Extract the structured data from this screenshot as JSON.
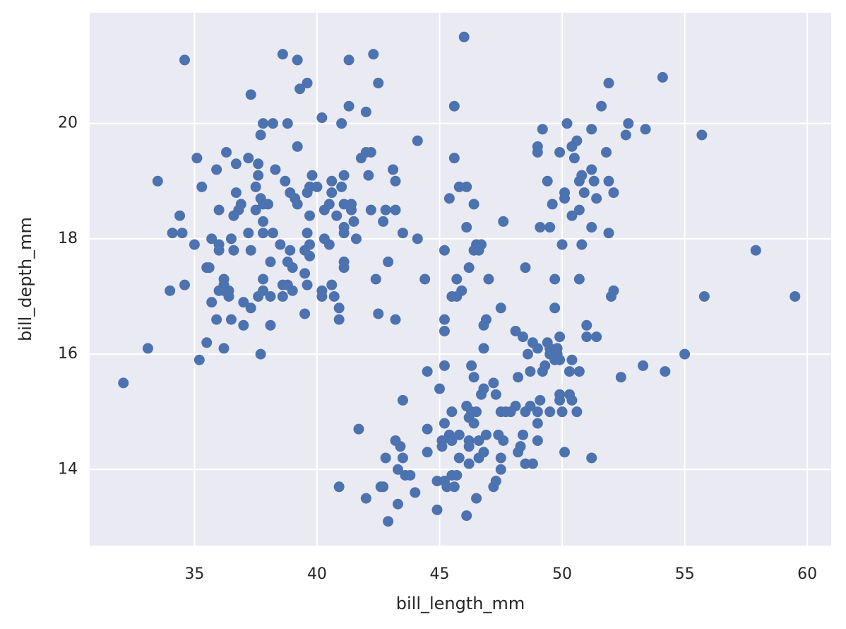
{
  "chart_data": {
    "type": "scatter",
    "x_label": "bill_length_mm",
    "y_label": "bill_depth_mm",
    "color": "#4c72b0",
    "grid": true,
    "xlim": [
      30.725,
      60.975
    ],
    "ylim": [
      12.68,
      21.92
    ],
    "xticks": [
      35,
      40,
      45,
      50,
      55,
      60
    ],
    "yticks": [
      14,
      16,
      18,
      20
    ],
    "x": [
      32.1,
      33.1,
      33.5,
      34.0,
      34.1,
      34.4,
      34.5,
      34.6,
      34.6,
      35.0,
      35.1,
      35.2,
      35.3,
      35.5,
      35.5,
      35.6,
      35.7,
      35.7,
      35.9,
      35.9,
      36.0,
      36.0,
      36.0,
      36.0,
      36.2,
      36.2,
      36.2,
      36.2,
      36.3,
      36.4,
      36.4,
      36.5,
      36.5,
      36.6,
      36.6,
      36.7,
      36.7,
      36.8,
      36.9,
      37.0,
      37.0,
      37.2,
      37.2,
      37.3,
      37.3,
      37.3,
      37.5,
      37.5,
      37.6,
      37.6,
      37.6,
      37.7,
      37.7,
      37.7,
      37.8,
      37.8,
      37.8,
      37.8,
      37.8,
      37.8,
      38.0,
      38.1,
      38.1,
      38.1,
      38.2,
      38.2,
      38.3,
      38.5,
      38.6,
      38.6,
      38.6,
      38.7,
      38.8,
      38.8,
      38.8,
      38.9,
      38.9,
      39.0,
      39.0,
      39.1,
      39.2,
      39.2,
      39.2,
      39.3,
      39.5,
      39.5,
      39.5,
      39.6,
      39.6,
      39.6,
      39.6,
      39.7,
      39.7,
      39.7,
      39.7,
      39.8,
      40.0,
      40.2,
      40.2,
      40.2,
      40.3,
      40.3,
      40.5,
      40.5,
      40.6,
      40.6,
      40.6,
      40.7,
      40.8,
      40.9,
      40.9,
      40.9,
      41.0,
      41.0,
      41.1,
      41.1,
      41.1,
      41.1,
      41.1,
      41.1,
      41.3,
      41.3,
      41.4,
      41.4,
      41.5,
      41.6,
      41.7,
      41.8,
      42.0,
      42.0,
      42.0,
      42.1,
      42.2,
      42.2,
      42.3,
      42.4,
      42.5,
      42.5,
      42.6,
      42.7,
      42.7,
      42.8,
      42.8,
      42.9,
      42.9,
      43.1,
      43.2,
      43.2,
      43.2,
      43.2,
      43.3,
      43.3,
      43.4,
      43.5,
      43.5,
      43.5,
      43.6,
      43.8,
      44.0,
      44.1,
      44.1,
      44.4,
      44.5,
      44.5,
      44.5,
      44.9,
      44.9,
      45.0,
      45.1,
      45.1,
      45.2,
      45.2,
      45.2,
      45.2,
      45.2,
      45.2,
      45.3,
      45.4,
      45.4,
      45.5,
      45.5,
      45.5,
      45.5,
      45.6,
      45.6,
      45.6,
      45.7,
      45.7,
      45.7,
      45.8,
      45.8,
      45.8,
      45.9,
      46.0,
      46.1,
      46.1,
      46.1,
      46.1,
      46.2,
      46.2,
      46.2,
      46.2,
      46.2,
      46.3,
      46.3,
      46.4,
      46.4,
      46.4,
      46.4,
      46.5,
      46.5,
      46.5,
      46.6,
      46.6,
      46.6,
      46.7,
      46.7,
      46.8,
      46.8,
      46.8,
      46.8,
      46.9,
      46.9,
      47.0,
      47.2,
      47.2,
      47.3,
      47.3,
      47.4,
      47.5,
      47.5,
      47.5,
      47.5,
      47.6,
      47.6,
      47.7,
      47.9,
      48.1,
      48.1,
      48.2,
      48.2,
      48.3,
      48.4,
      48.4,
      48.5,
      48.5,
      48.5,
      48.6,
      48.7,
      48.7,
      48.8,
      48.8,
      49.0,
      49.0,
      49.0,
      49.0,
      49.0,
      49.0,
      49.1,
      49.1,
      49.2,
      49.2,
      49.3,
      49.4,
      49.4,
      49.5,
      49.5,
      49.5,
      49.5,
      49.6,
      49.7,
      49.7,
      49.7,
      49.8,
      49.8,
      49.9,
      49.9,
      49.9,
      49.9,
      49.9,
      50.0,
      50.0,
      50.1,
      50.1,
      50.1,
      50.2,
      50.3,
      50.3,
      50.4,
      50.4,
      50.4,
      50.4,
      50.5,
      50.6,
      50.6,
      50.7,
      50.7,
      50.7,
      50.7,
      50.8,
      50.8,
      50.9,
      51.0,
      51.0,
      51.2,
      51.2,
      51.2,
      51.2,
      51.3,
      51.4,
      51.4,
      51.6,
      51.8,
      51.9,
      51.9,
      51.9,
      52.0,
      52.1,
      52.1,
      52.4,
      52.6,
      52.7,
      53.3,
      53.4,
      54.1,
      54.2,
      55.0,
      55.7,
      55.8,
      57.9,
      59.5
    ],
    "values": [
      15.5,
      16.1,
      19.0,
      17.1,
      18.1,
      18.4,
      18.1,
      21.1,
      17.2,
      17.9,
      19.4,
      15.9,
      18.9,
      16.2,
      17.5,
      17.5,
      18.0,
      16.9,
      19.2,
      16.6,
      18.5,
      17.8,
      17.9,
      17.1,
      17.1,
      16.1,
      17.3,
      17.2,
      19.5,
      17.0,
      17.1,
      18.0,
      16.6,
      18.4,
      17.8,
      19.3,
      18.8,
      18.5,
      18.6,
      16.9,
      16.5,
      19.4,
      18.1,
      20.5,
      17.8,
      16.8,
      18.9,
      18.5,
      19.3,
      19.1,
      17.0,
      19.8,
      18.7,
      16.0,
      20.0,
      18.6,
      18.3,
      18.1,
      17.3,
      17.1,
      18.6,
      17.6,
      17.0,
      16.5,
      20.0,
      18.1,
      19.2,
      17.9,
      21.2,
      17.2,
      17.0,
      19.0,
      20.0,
      17.6,
      17.2,
      17.8,
      18.8,
      17.5,
      17.1,
      18.7,
      21.1,
      19.6,
      18.6,
      20.6,
      17.4,
      16.7,
      17.8,
      20.7,
      18.8,
      18.1,
      17.2,
      18.9,
      17.7,
      18.4,
      17.9,
      19.1,
      18.9,
      20.1,
      17.1,
      17.0,
      18.5,
      18.0,
      17.9,
      18.6,
      17.2,
      19.0,
      18.8,
      17.0,
      18.4,
      16.8,
      16.6,
      13.7,
      20.0,
      18.9,
      19.1,
      18.6,
      18.2,
      18.1,
      17.6,
      17.5,
      21.1,
      20.3,
      18.6,
      18.5,
      18.3,
      18.0,
      14.7,
      19.4,
      20.2,
      19.5,
      13.5,
      19.1,
      19.5,
      18.5,
      21.2,
      17.3,
      20.7,
      16.7,
      13.7,
      18.3,
      13.7,
      18.5,
      14.2,
      17.6,
      13.1,
      19.2,
      19.0,
      18.5,
      16.6,
      14.5,
      14.0,
      13.4,
      14.4,
      15.2,
      14.2,
      18.1,
      13.9,
      13.9,
      13.6,
      18.0,
      19.7,
      17.3,
      15.7,
      14.7,
      14.3,
      13.8,
      13.3,
      15.4,
      14.5,
      14.4,
      17.8,
      16.6,
      16.4,
      15.8,
      14.8,
      13.8,
      13.7,
      18.7,
      14.6,
      17.0,
      15.0,
      14.5,
      13.9,
      19.4,
      20.3,
      13.7,
      17.0,
      17.3,
      13.9,
      18.9,
      14.6,
      14.2,
      17.1,
      21.5,
      18.9,
      18.2,
      15.1,
      13.2,
      17.5,
      14.9,
      14.5,
      14.4,
      14.1,
      15.8,
      15.0,
      15.6,
      18.6,
      14.8,
      17.8,
      17.9,
      15.0,
      13.5,
      14.5,
      14.2,
      17.8,
      17.9,
      15.3,
      16.5,
      15.4,
      16.1,
      14.3,
      16.6,
      14.6,
      17.3,
      15.5,
      13.7,
      15.3,
      13.8,
      14.6,
      16.8,
      15.0,
      14.2,
      14.0,
      18.3,
      14.5,
      15.0,
      15.0,
      16.4,
      15.1,
      15.6,
      14.3,
      14.4,
      16.3,
      14.6,
      17.5,
      15.0,
      14.1,
      16.0,
      15.7,
      15.1,
      14.1,
      16.2,
      19.6,
      19.5,
      16.1,
      15.0,
      14.8,
      14.5,
      18.2,
      15.2,
      19.9,
      15.7,
      15.8,
      16.2,
      19.0,
      16.1,
      16.0,
      18.2,
      15.0,
      18.6,
      17.3,
      16.8,
      15.9,
      16.1,
      16.0,
      19.5,
      16.3,
      15.9,
      15.3,
      15.2,
      17.9,
      15.0,
      18.8,
      18.7,
      14.3,
      20.0,
      15.3,
      15.7,
      19.6,
      18.4,
      15.9,
      15.2,
      19.4,
      19.7,
      15.0,
      19.0,
      18.5,
      17.3,
      15.7,
      19.1,
      17.9,
      18.8,
      16.5,
      16.3,
      19.2,
      19.9,
      18.2,
      14.2,
      19.0,
      18.7,
      16.3,
      20.3,
      19.5,
      20.7,
      19.0,
      18.1,
      17.0,
      17.1,
      18.8,
      15.6,
      19.8,
      20.0,
      15.8,
      19.9,
      20.8,
      15.7,
      16.0,
      19.8,
      17.0,
      17.8,
      17.0
    ]
  }
}
